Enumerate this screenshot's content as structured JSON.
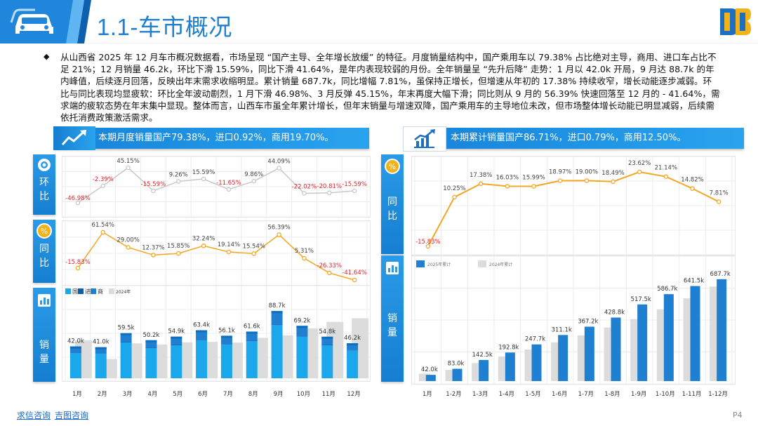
{
  "header": {
    "title": "1.1-车市概况",
    "logo_text": "D"
  },
  "summary": {
    "text": "从山西省 2025 年 12 月车市概况数据看，市场呈现 “国产主导、全年增长放缓” 的特征。月度销量结构中，国产乘用车以 79.38% 占比绝对主导，商用、进口车占比不足 21%；12 月销量 46.2k，环比下滑 15.59%，同比下滑 41.64%，是年内表现较弱的月份。全年销量呈 “先升后降” 走势：1 月以 42.0k 开局，9 月达 88.7k 的年内峰值，后续逐月回落，反映出年末需求收缩明显。累计销量 687.7k，同比增幅 7.81%，虽保持正增长，但增速从年初的 17.38% 持续收窄，增长动能逐步减弱。环比与同比表现均显疲软：环比全年波动剧烈，1 月下滑 46.98%、3 月反弹 45.15%，年末再度大幅下滑；同比则从 9 月的 56.39% 快速回落至 12 月的 - 41.64%，需求端的疲软态势在年末集中显现。整体而言，山西车市虽全年累计增长，但年末销量与增速双降，国产乘用车的主导地位未改，但市场整体增长动能已明显减弱，后续需依托消费政策激活需求。"
  },
  "left_panel": {
    "banner": "本期月度销量国产79.38%，进口0.92%，商用19.70%。",
    "tabs": {
      "mom": [
        "环",
        "比"
      ],
      "yoy": [
        "同",
        "比"
      ],
      "sales": [
        "销",
        "量"
      ]
    }
  },
  "right_panel": {
    "banner": "本期累计销量国产86.71%，进口0.79%，商用12.50%。",
    "tabs": {
      "yoy": [
        "同",
        "比"
      ],
      "sales": [
        "销",
        "量"
      ]
    }
  },
  "chart_data": [
    {
      "id": "monthly-mom",
      "type": "line",
      "categories": [
        "1月",
        "2月",
        "3月",
        "4月",
        "5月",
        "6月",
        "7月",
        "8月",
        "9月",
        "10月",
        "11月",
        "12月"
      ],
      "values": [
        -46.98,
        -2.39,
        45.15,
        -15.59,
        9.26,
        15.59,
        -11.65,
        9.86,
        44.09,
        -22.02,
        -20.81,
        -15.59
      ],
      "labels": [
        "-46.98%",
        "-2.39%",
        "45.15%",
        "-15.59%",
        "9.26%",
        "15.59%",
        "-11.65%",
        "9.86%",
        "44.09%",
        "-22.02%",
        "-20.81%",
        "-15.59%"
      ],
      "color": "#c8c8c8",
      "negative_color": "#e8202a"
    },
    {
      "id": "monthly-yoy",
      "type": "line",
      "categories": [
        "1月",
        "2月",
        "3月",
        "4月",
        "5月",
        "6月",
        "7月",
        "8月",
        "9月",
        "10月",
        "11月",
        "12月"
      ],
      "values": [
        -15.83,
        61.54,
        29.0,
        12.37,
        15.85,
        32.24,
        19.14,
        15.54,
        56.39,
        5.31,
        -26.33,
        -41.64
      ],
      "labels": [
        "-15.83%",
        "61.54%",
        "29.00%",
        "12.37%",
        "15.85%",
        "32.24%",
        "19.14%",
        "15.54%",
        "56.39%",
        "5.31%",
        "-26.33%",
        "-41.64%"
      ],
      "color": "#f5a623",
      "negative_color": "#e8202a"
    },
    {
      "id": "monthly-sales",
      "type": "bar",
      "categories": [
        "1月",
        "2月",
        "3月",
        "4月",
        "5月",
        "6月",
        "7月",
        "8月",
        "9月",
        "10月",
        "11月",
        "12月"
      ],
      "legend": [
        "国",
        "进",
        "商",
        "2024年"
      ],
      "series": [
        {
          "name": "国",
          "values": [
            33.3,
            32.5,
            47.2,
            39.8,
            43.5,
            50.3,
            44.5,
            48.9,
            70.4,
            54.9,
            43.5,
            36.7
          ]
        },
        {
          "name": "进",
          "values": [
            0.4,
            0.4,
            0.5,
            0.5,
            0.5,
            0.6,
            0.5,
            0.6,
            0.8,
            0.6,
            0.5,
            0.4
          ]
        },
        {
          "name": "商",
          "values": [
            8.3,
            8.1,
            11.8,
            9.9,
            10.9,
            12.5,
            11.1,
            12.1,
            17.5,
            13.7,
            10.8,
            9.1
          ]
        },
        {
          "name": "2024年",
          "values": [
            49.9,
            25.4,
            46.1,
            44.6,
            47.4,
            48.0,
            47.1,
            53.3,
            56.7,
            65.7,
            74.4,
            79.2
          ]
        }
      ],
      "totals": [
        42.0,
        41.0,
        59.5,
        50.2,
        54.9,
        63.4,
        56.1,
        61.6,
        88.7,
        69.2,
        54.8,
        46.2
      ],
      "labels": [
        "42.0k",
        "41.0k",
        "59.5k",
        "50.2k",
        "54.9k",
        "63.4k",
        "56.1k",
        "61.6k",
        "88.7k",
        "69.2k",
        "54.8k",
        "46.2k"
      ],
      "ylim": [
        0,
        100
      ],
      "colors": {
        "国": "#1aa7ec",
        "进": "#0e5fa8",
        "商": "#1f7fd0",
        "2024年": "#dcdcdc"
      }
    },
    {
      "id": "cumulative-yoy",
      "type": "line",
      "categories": [
        "1月",
        "1-2月",
        "1-3月",
        "1-4月",
        "1-5月",
        "1-6月",
        "1-7月",
        "1-8月",
        "1-9月",
        "1-10月",
        "1-11月",
        "1-12月"
      ],
      "values": [
        -15.83,
        10.25,
        17.38,
        16.03,
        15.99,
        18.97,
        19.0,
        18.49,
        23.62,
        21.14,
        14.82,
        7.81
      ],
      "labels": [
        "-15.83%",
        "10.25%",
        "17.38%",
        "16.03%",
        "15.99%",
        "18.97%",
        "19.00%",
        "18.49%",
        "23.62%",
        "21.14%",
        "14.82%",
        "7.81%"
      ],
      "color": "#f5a623",
      "negative_color": "#e8202a"
    },
    {
      "id": "cumulative-sales",
      "type": "bar",
      "categories": [
        "1月",
        "1-2月",
        "1-3月",
        "1-4月",
        "1-5月",
        "1-6月",
        "1-7月",
        "1-8月",
        "1-9月",
        "1-10月",
        "1-11月",
        "1-12月"
      ],
      "legend": [
        "2025年累计",
        "2024年累计"
      ],
      "series": [
        {
          "name": "2025年累计",
          "values": [
            42.0,
            83.0,
            142.5,
            192.8,
            247.7,
            311.1,
            367.2,
            428.8,
            517.5,
            586.7,
            641.5,
            687.7
          ]
        },
        {
          "name": "2024年累计",
          "values": [
            49.9,
            75.3,
            121.4,
            166.0,
            213.4,
            261.4,
            308.5,
            361.8,
            418.5,
            484.2,
            558.6,
            637.8
          ]
        }
      ],
      "labels": [
        "42.0k",
        "83.0k",
        "142.5k",
        "192.8k",
        "247.7k",
        "311.1k",
        "367.2k",
        "428.8k",
        "517.5k",
        "586.7k",
        "641.5k",
        "687.7k"
      ],
      "ylim": [
        0,
        720
      ],
      "colors": {
        "2025年累计": "#1f7fd0",
        "2024年累计": "#dcdcdc"
      }
    }
  ],
  "footer": {
    "links": [
      "求信咨询",
      "吉图咨询"
    ],
    "page": "P4"
  }
}
